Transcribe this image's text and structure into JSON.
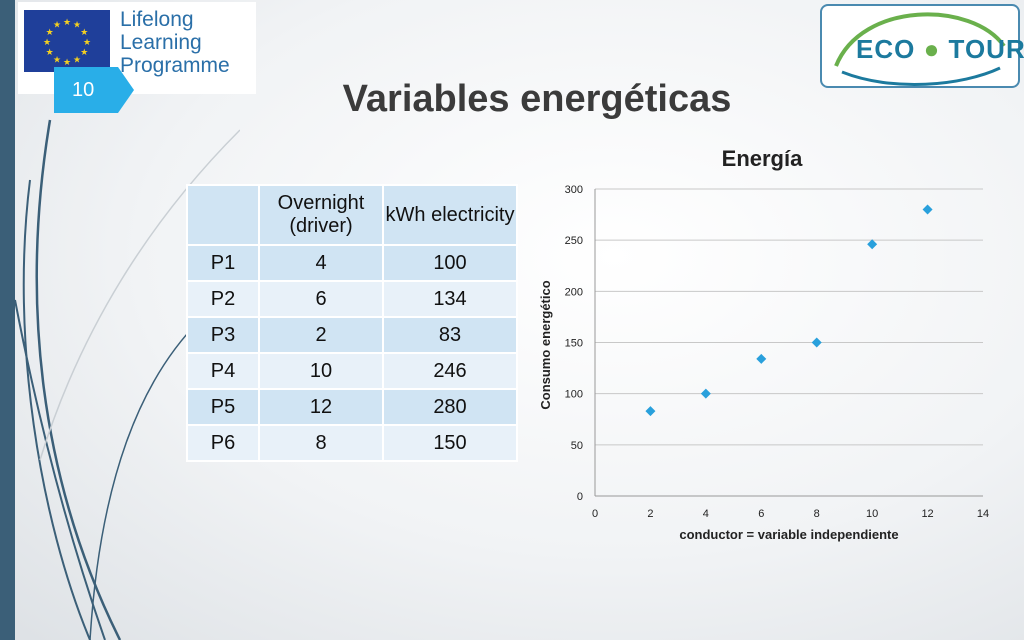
{
  "page_number": "10",
  "slide_title": "Variables energéticas",
  "logos": {
    "lll_lines": [
      "Lifelong",
      "Learning",
      "Programme"
    ],
    "ecotour_left": "ECO",
    "ecotour_right": "TOUR"
  },
  "table": {
    "headers": [
      "",
      "Overnight (driver)",
      "kWh electricity"
    ],
    "rows": [
      [
        "P1",
        "4",
        "100"
      ],
      [
        "P2",
        "6",
        "134"
      ],
      [
        "P3",
        "2",
        "83"
      ],
      [
        "P4",
        "10",
        "246"
      ],
      [
        "P5",
        "12",
        "280"
      ],
      [
        "P6",
        "8",
        "150"
      ]
    ]
  },
  "chart_data": {
    "type": "scatter",
    "title": "Energía",
    "xlabel": "conductor = variable independiente",
    "ylabel": "Consumo energético",
    "xlim": [
      0,
      14
    ],
    "ylim": [
      0,
      300
    ],
    "xticks": [
      0,
      2,
      4,
      6,
      8,
      10,
      12,
      14
    ],
    "yticks": [
      0,
      50,
      100,
      150,
      200,
      250,
      300
    ],
    "grid": true,
    "marker": "diamond",
    "color": "#29a0dc",
    "points": [
      {
        "x": 4,
        "y": 100
      },
      {
        "x": 6,
        "y": 134
      },
      {
        "x": 2,
        "y": 83
      },
      {
        "x": 10,
        "y": 246
      },
      {
        "x": 12,
        "y": 280
      },
      {
        "x": 8,
        "y": 150
      }
    ]
  }
}
